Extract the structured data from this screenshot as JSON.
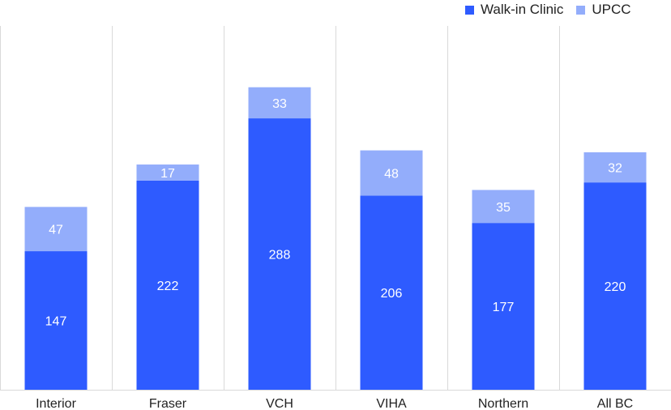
{
  "chart_data": {
    "type": "bar",
    "stacked": true,
    "categories": [
      "Interior",
      "Fraser",
      "VCH",
      "VIHA",
      "Northern",
      "All BC"
    ],
    "series": [
      {
        "name": "Walk-in Clinic",
        "values": [
          147,
          222,
          288,
          206,
          177,
          220
        ],
        "color": "#2e5bff"
      },
      {
        "name": "UPCC",
        "values": [
          47,
          17,
          33,
          48,
          35,
          32
        ],
        "color": "#93adfb"
      }
    ],
    "ylim": [
      0,
      330
    ],
    "legend": "top-right",
    "grid": false,
    "title": "",
    "xlabel": "",
    "ylabel": ""
  }
}
